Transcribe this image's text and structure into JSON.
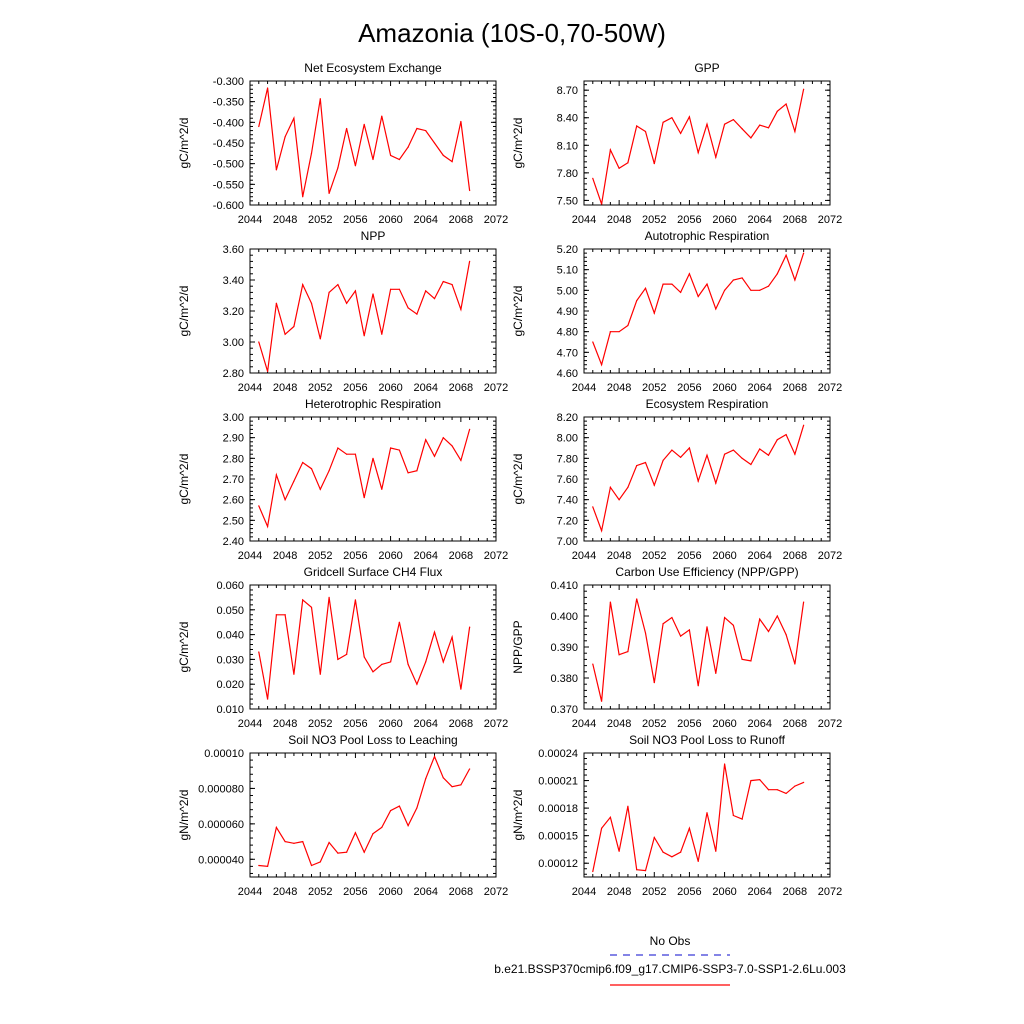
{
  "figure": {
    "title": "Amazonia (10S-0,70-50W)",
    "legend": [
      {
        "label": "No Obs",
        "color": "#3b3bd6",
        "dash": true
      },
      {
        "label": "b.e21.BSSP370cmip6.f09_g17.CMIP6-SSP3-7.0-SSP1-2.6Lu.003",
        "color": "#ff0000",
        "dash": false
      }
    ]
  },
  "chart_data": [
    {
      "type": "line",
      "title": "Net Ecosystem Exchange",
      "ylabel": "gC/m^2/d",
      "xlim": [
        2044,
        2072
      ],
      "ylim": [
        -0.6,
        -0.3
      ],
      "xticks": [
        2044,
        2048,
        2052,
        2056,
        2060,
        2064,
        2068,
        2072
      ],
      "yticks": [
        "-0.300",
        "-0.350",
        "-0.400",
        "-0.450",
        "-0.500",
        "-0.550",
        "-0.600"
      ],
      "x": [
        2045,
        2046,
        2047,
        2048,
        2049,
        2050,
        2051,
        2052,
        2053,
        2054,
        2055,
        2056,
        2057,
        2058,
        2059,
        2060,
        2061,
        2062,
        2063,
        2064,
        2065,
        2066,
        2067,
        2068,
        2069
      ],
      "series": [
        {
          "color": "#ff0000",
          "values": [
            -0.41,
            -0.317,
            -0.515,
            -0.435,
            -0.39,
            -0.58,
            -0.475,
            -0.343,
            -0.572,
            -0.51,
            -0.415,
            -0.505,
            -0.405,
            -0.49,
            -0.385,
            -0.48,
            -0.49,
            -0.46,
            -0.415,
            -0.42,
            -0.45,
            -0.48,
            -0.495,
            -0.398,
            -0.565
          ]
        }
      ]
    },
    {
      "type": "line",
      "title": "GPP",
      "ylabel": "gC/m^2/d",
      "xlim": [
        2044,
        2072
      ],
      "ylim": [
        7.45,
        8.8
      ],
      "xticks": [
        2044,
        2048,
        2052,
        2056,
        2060,
        2064,
        2068,
        2072
      ],
      "yticks": [
        "7.50",
        "7.80",
        "8.10",
        "8.40",
        "8.70"
      ],
      "x": [
        2045,
        2046,
        2047,
        2048,
        2049,
        2050,
        2051,
        2052,
        2053,
        2054,
        2055,
        2056,
        2057,
        2058,
        2059,
        2060,
        2061,
        2062,
        2063,
        2064,
        2065,
        2066,
        2067,
        2068,
        2069
      ],
      "series": [
        {
          "color": "#ff0000",
          "values": [
            7.74,
            7.46,
            8.05,
            7.85,
            7.91,
            8.31,
            8.25,
            7.9,
            8.35,
            8.4,
            8.23,
            8.41,
            8.02,
            8.33,
            7.97,
            8.33,
            8.38,
            8.28,
            8.18,
            8.32,
            8.29,
            8.47,
            8.55,
            8.25,
            8.71
          ]
        }
      ]
    },
    {
      "type": "line",
      "title": "NPP",
      "ylabel": "gC/m^2/d",
      "xlim": [
        2044,
        2072
      ],
      "ylim": [
        2.8,
        3.6
      ],
      "xticks": [
        2044,
        2048,
        2052,
        2056,
        2060,
        2064,
        2068,
        2072
      ],
      "yticks": [
        "2.80",
        "3.00",
        "3.20",
        "3.40",
        "3.60"
      ],
      "x": [
        2045,
        2046,
        2047,
        2048,
        2049,
        2050,
        2051,
        2052,
        2053,
        2054,
        2055,
        2056,
        2057,
        2058,
        2059,
        2060,
        2061,
        2062,
        2063,
        2064,
        2065,
        2066,
        2067,
        2068,
        2069
      ],
      "series": [
        {
          "color": "#ff0000",
          "values": [
            3.0,
            2.81,
            3.25,
            3.05,
            3.1,
            3.37,
            3.25,
            3.02,
            3.32,
            3.37,
            3.25,
            3.33,
            3.04,
            3.31,
            3.05,
            3.34,
            3.34,
            3.22,
            3.18,
            3.33,
            3.28,
            3.39,
            3.37,
            3.21,
            3.52
          ]
        }
      ]
    },
    {
      "type": "line",
      "title": "Autotrophic Respiration",
      "ylabel": "gC/m^2/d",
      "xlim": [
        2044,
        2072
      ],
      "ylim": [
        4.6,
        5.2
      ],
      "xticks": [
        2044,
        2048,
        2052,
        2056,
        2060,
        2064,
        2068,
        2072
      ],
      "yticks": [
        "4.60",
        "4.70",
        "4.80",
        "4.90",
        "5.00",
        "5.10",
        "5.20"
      ],
      "x": [
        2045,
        2046,
        2047,
        2048,
        2049,
        2050,
        2051,
        2052,
        2053,
        2054,
        2055,
        2056,
        2057,
        2058,
        2059,
        2060,
        2061,
        2062,
        2063,
        2064,
        2065,
        2066,
        2067,
        2068,
        2069
      ],
      "series": [
        {
          "color": "#ff0000",
          "values": [
            4.75,
            4.64,
            4.8,
            4.8,
            4.83,
            4.95,
            5.01,
            4.89,
            5.03,
            5.03,
            4.99,
            5.08,
            4.97,
            5.03,
            4.91,
            5.0,
            5.05,
            5.06,
            5.0,
            5.0,
            5.02,
            5.08,
            5.17,
            5.05,
            5.18
          ]
        }
      ]
    },
    {
      "type": "line",
      "title": "Heterotrophic Respiration",
      "ylabel": "gC/m^2/d",
      "xlim": [
        2044,
        2072
      ],
      "ylim": [
        2.4,
        3.0
      ],
      "xticks": [
        2044,
        2048,
        2052,
        2056,
        2060,
        2064,
        2068,
        2072
      ],
      "yticks": [
        "2.40",
        "2.50",
        "2.60",
        "2.70",
        "2.80",
        "2.90",
        "3.00"
      ],
      "x": [
        2045,
        2046,
        2047,
        2048,
        2049,
        2050,
        2051,
        2052,
        2053,
        2054,
        2055,
        2056,
        2057,
        2058,
        2059,
        2060,
        2061,
        2062,
        2063,
        2064,
        2065,
        2066,
        2067,
        2068,
        2069
      ],
      "series": [
        {
          "color": "#ff0000",
          "values": [
            2.57,
            2.47,
            2.72,
            2.6,
            2.69,
            2.78,
            2.75,
            2.65,
            2.74,
            2.85,
            2.82,
            2.82,
            2.61,
            2.8,
            2.65,
            2.85,
            2.84,
            2.73,
            2.74,
            2.89,
            2.81,
            2.9,
            2.86,
            2.79,
            2.94
          ]
        }
      ]
    },
    {
      "type": "line",
      "title": "Ecosystem Respiration",
      "ylabel": "gC/m^2/d",
      "xlim": [
        2044,
        2072
      ],
      "ylim": [
        7.0,
        8.2
      ],
      "xticks": [
        2044,
        2048,
        2052,
        2056,
        2060,
        2064,
        2068,
        2072
      ],
      "yticks": [
        "7.00",
        "7.20",
        "7.40",
        "7.60",
        "7.80",
        "8.00",
        "8.20"
      ],
      "x": [
        2045,
        2046,
        2047,
        2048,
        2049,
        2050,
        2051,
        2052,
        2053,
        2054,
        2055,
        2056,
        2057,
        2058,
        2059,
        2060,
        2061,
        2062,
        2063,
        2064,
        2065,
        2066,
        2067,
        2068,
        2069
      ],
      "series": [
        {
          "color": "#ff0000",
          "values": [
            7.33,
            7.1,
            7.52,
            7.4,
            7.52,
            7.73,
            7.76,
            7.54,
            7.78,
            7.88,
            7.81,
            7.9,
            7.58,
            7.83,
            7.56,
            7.84,
            7.88,
            7.8,
            7.74,
            7.89,
            7.83,
            7.98,
            8.03,
            7.84,
            8.12
          ]
        }
      ]
    },
    {
      "type": "line",
      "title": "Gridcell Surface CH4 Flux",
      "ylabel": "gC/m^2/d",
      "xlim": [
        2044,
        2072
      ],
      "ylim": [
        0.01,
        0.06
      ],
      "xticks": [
        2044,
        2048,
        2052,
        2056,
        2060,
        2064,
        2068,
        2072
      ],
      "yticks": [
        "0.010",
        "0.020",
        "0.030",
        "0.040",
        "0.050",
        "0.060"
      ],
      "x": [
        2045,
        2046,
        2047,
        2048,
        2049,
        2050,
        2051,
        2052,
        2053,
        2054,
        2055,
        2056,
        2057,
        2058,
        2059,
        2060,
        2061,
        2062,
        2063,
        2064,
        2065,
        2066,
        2067,
        2068,
        2069
      ],
      "series": [
        {
          "color": "#ff0000",
          "values": [
            0.033,
            0.014,
            0.048,
            0.048,
            0.024,
            0.054,
            0.051,
            0.024,
            0.055,
            0.03,
            0.032,
            0.054,
            0.031,
            0.025,
            0.028,
            0.029,
            0.045,
            0.028,
            0.02,
            0.029,
            0.041,
            0.029,
            0.039,
            0.018,
            0.043
          ]
        }
      ]
    },
    {
      "type": "line",
      "title": "Carbon Use Efficiency (NPP/GPP)",
      "ylabel": "NPP/GPP",
      "xlim": [
        2044,
        2072
      ],
      "ylim": [
        0.37,
        0.41
      ],
      "xticks": [
        2044,
        2048,
        2052,
        2056,
        2060,
        2064,
        2068,
        2072
      ],
      "yticks": [
        "0.370",
        "0.380",
        "0.390",
        "0.400",
        "0.410"
      ],
      "x": [
        2045,
        2046,
        2047,
        2048,
        2049,
        2050,
        2051,
        2052,
        2053,
        2054,
        2055,
        2056,
        2057,
        2058,
        2059,
        2060,
        2061,
        2062,
        2063,
        2064,
        2065,
        2066,
        2067,
        2068,
        2069
      ],
      "series": [
        {
          "color": "#ff0000",
          "values": [
            0.3845,
            0.3725,
            0.4045,
            0.3875,
            0.3885,
            0.4055,
            0.3945,
            0.3785,
            0.3975,
            0.3995,
            0.3935,
            0.3955,
            0.3775,
            0.3965,
            0.3815,
            0.3995,
            0.397,
            0.386,
            0.3855,
            0.399,
            0.395,
            0.4,
            0.394,
            0.3845,
            0.4045
          ]
        }
      ]
    },
    {
      "type": "line",
      "title": "Soil NO3 Pool Loss to Leaching",
      "ylabel": "gN/m^2/d",
      "xlim": [
        2044,
        2072
      ],
      "ylim": [
        3e-05,
        0.0001
      ],
      "xticks": [
        2044,
        2048,
        2052,
        2056,
        2060,
        2064,
        2068,
        2072
      ],
      "yticks": [
        "0.000040",
        "0.000060",
        "0.000080",
        "0.00010"
      ],
      "x": [
        2045,
        2046,
        2047,
        2048,
        2049,
        2050,
        2051,
        2052,
        2053,
        2054,
        2055,
        2056,
        2057,
        2058,
        2059,
        2060,
        2061,
        2062,
        2063,
        2064,
        2065,
        2066,
        2067,
        2068,
        2069
      ],
      "series": [
        {
          "color": "#ff0000",
          "values": [
            3.65e-05,
            3.6e-05,
            5.8e-05,
            5e-05,
            4.9e-05,
            5e-05,
            3.65e-05,
            3.85e-05,
            4.95e-05,
            4.35e-05,
            4.4e-05,
            5.5e-05,
            4.4e-05,
            5.45e-05,
            5.8e-05,
            6.75e-05,
            7e-05,
            5.9e-05,
            6.9e-05,
            8.55e-05,
            9.8e-05,
            8.6e-05,
            8.1e-05,
            8.2e-05,
            9.1e-05
          ]
        }
      ]
    },
    {
      "type": "line",
      "title": "Soil NO3 Pool Loss to Runoff",
      "ylabel": "gN/m^2/d",
      "xlim": [
        2044,
        2072
      ],
      "ylim": [
        0.000105,
        0.00024
      ],
      "xticks": [
        2044,
        2048,
        2052,
        2056,
        2060,
        2064,
        2068,
        2072
      ],
      "yticks": [
        "0.00012",
        "0.00015",
        "0.00018",
        "0.00021",
        "0.00024"
      ],
      "x": [
        2045,
        2046,
        2047,
        2048,
        2049,
        2050,
        2051,
        2052,
        2053,
        2054,
        2055,
        2056,
        2057,
        2058,
        2059,
        2060,
        2061,
        2062,
        2063,
        2064,
        2065,
        2066,
        2067,
        2068,
        2069
      ],
      "series": [
        {
          "color": "#ff0000",
          "values": [
            0.000111,
            0.000158,
            0.00017,
            0.000133,
            0.000182,
            0.000113,
            0.000112,
            0.000148,
            0.000132,
            0.000127,
            0.000132,
            0.000158,
            0.000122,
            0.000175,
            0.000133,
            0.000228,
            0.000172,
            0.000168,
            0.00021,
            0.000211,
            0.0002,
            0.0002,
            0.000196,
            0.000204,
            0.000208
          ]
        }
      ]
    }
  ]
}
